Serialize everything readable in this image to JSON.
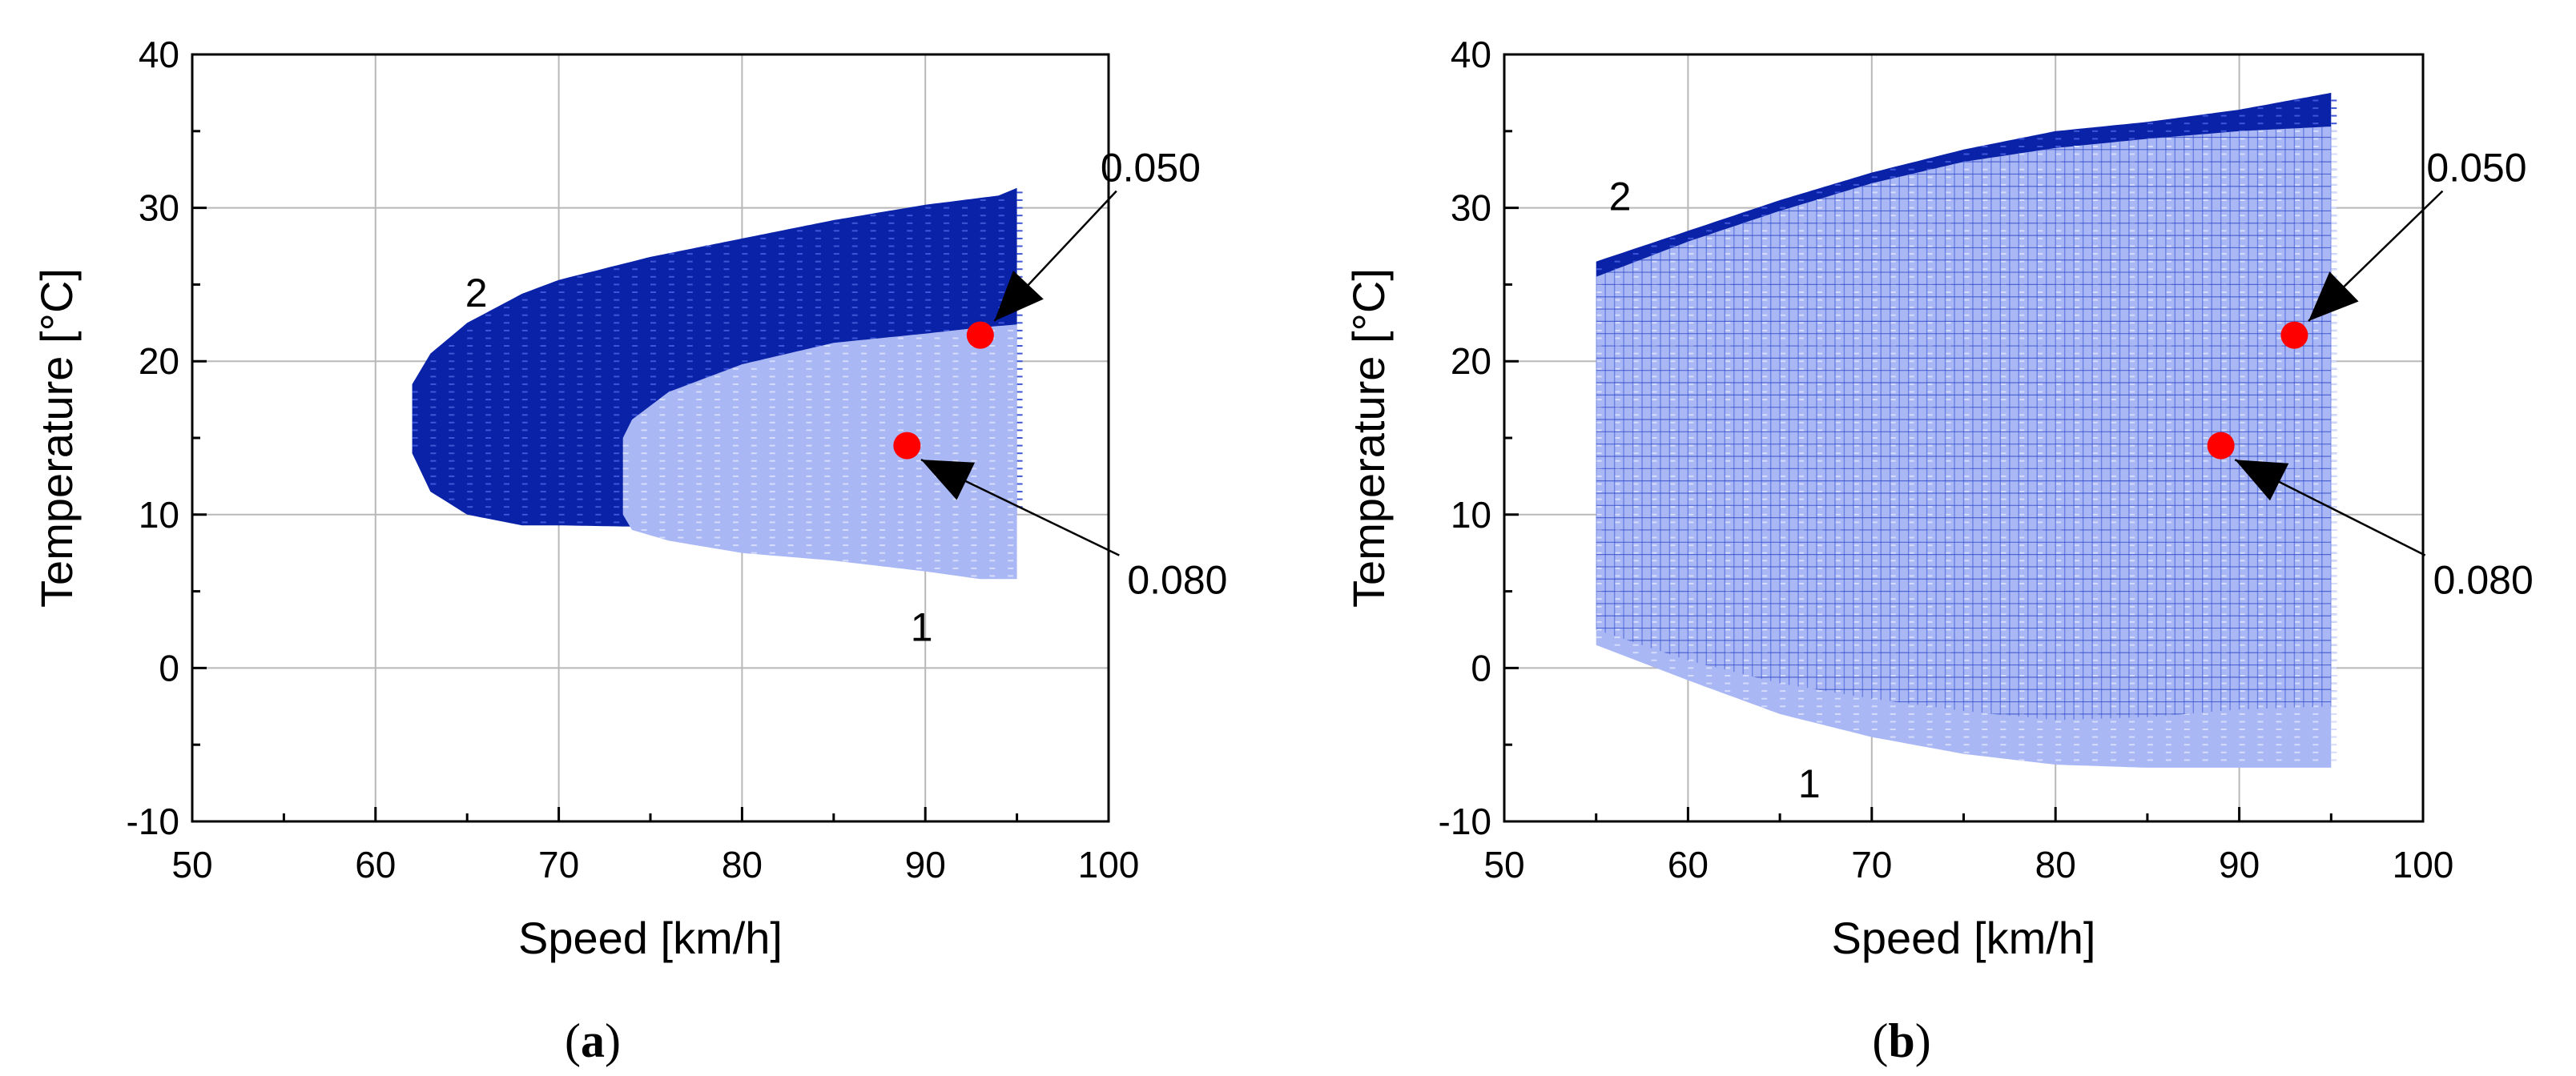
{
  "chart_data": [
    {
      "type": "scatter",
      "panel": "a",
      "caption_open": "(",
      "caption_letter": "a",
      "caption_close": ")",
      "xlabel": "Speed [km/h]",
      "ylabel": "Temperature [°C]",
      "xlim": [
        50,
        100
      ],
      "ylim": [
        -10,
        40
      ],
      "xticks": [
        50,
        60,
        70,
        80,
        90,
        100
      ],
      "yticks": [
        -10,
        0,
        10,
        20,
        30,
        40
      ],
      "grid": true,
      "regions": [
        {
          "label": "2",
          "color": "#0a22a8",
          "x_range": [
            62,
            95
          ],
          "profile": [
            [
              62,
              14.0,
              18.5
            ],
            [
              63,
              11.5,
              20.5
            ],
            [
              65,
              10.0,
              22.5
            ],
            [
              68,
              9.3,
              24.4
            ],
            [
              70,
              9.3,
              25.3
            ],
            [
              75,
              9.2,
              26.8
            ],
            [
              80,
              9.3,
              28.0
            ],
            [
              85,
              9.6,
              29.2
            ],
            [
              90,
              9.8,
              30.2
            ],
            [
              94,
              10.0,
              30.8
            ],
            [
              95,
              10.0,
              31.3
            ]
          ],
          "label_pos": [
            65.5,
            24.5
          ]
        },
        {
          "label": "1",
          "color": "#a9b7f5",
          "x_range": [
            73.5,
            95
          ],
          "profile": [
            [
              73.5,
              10.0,
              15.0
            ],
            [
              74,
              9.0,
              16.2
            ],
            [
              76,
              8.3,
              18.0
            ],
            [
              80,
              7.5,
              19.8
            ],
            [
              85,
              7.0,
              21.2
            ],
            [
              90,
              6.3,
              21.8
            ],
            [
              93,
              5.8,
              22.2
            ],
            [
              95,
              5.8,
              22.4
            ]
          ],
          "label_pos": [
            89.8,
            2.7
          ]
        }
      ],
      "points": [
        {
          "label": "0.050",
          "x": 93,
          "y": 21.7,
          "color": "#ff0000"
        },
        {
          "label": "0.080",
          "x": 89,
          "y": 14.5,
          "color": "#ff0000"
        }
      ]
    },
    {
      "type": "scatter",
      "panel": "b",
      "caption_open": "(",
      "caption_letter": "b",
      "caption_close": ")",
      "xlabel": "Speed [km/h]",
      "ylabel": "Temperature [°C]",
      "xlim": [
        50,
        100
      ],
      "ylim": [
        -10,
        40
      ],
      "xticks": [
        50,
        60,
        70,
        80,
        90,
        100
      ],
      "yticks": [
        -10,
        0,
        10,
        20,
        30,
        40
      ],
      "grid": true,
      "regions": [
        {
          "label": "2",
          "color": "#0a22a8",
          "x_range": [
            55,
            95
          ],
          "profile": [
            [
              55,
              2.5,
              26.5
            ],
            [
              60,
              0.5,
              28.5
            ],
            [
              65,
              -1.0,
              30.5
            ],
            [
              70,
              -2.0,
              32.3
            ],
            [
              75,
              -2.8,
              33.8
            ],
            [
              80,
              -3.4,
              35.0
            ],
            [
              85,
              -3.2,
              35.6
            ],
            [
              90,
              -2.7,
              36.4
            ],
            [
              95,
              -2.5,
              37.5
            ]
          ],
          "label_pos": [
            56.3,
            30.8
          ]
        },
        {
          "label": "1",
          "color": "#a9b7f5",
          "x_range": [
            55,
            95
          ],
          "profile": [
            [
              55,
              1.5,
              25.5
            ],
            [
              60,
              -0.8,
              27.8
            ],
            [
              65,
              -3.0,
              29.8
            ],
            [
              70,
              -4.5,
              31.6
            ],
            [
              75,
              -5.6,
              33.0
            ],
            [
              80,
              -6.3,
              33.9
            ],
            [
              85,
              -6.5,
              34.5
            ],
            [
              90,
              -6.5,
              35.0
            ],
            [
              95,
              -6.5,
              35.3
            ]
          ],
          "label_pos": [
            66.6,
            -7.5
          ]
        }
      ],
      "points": [
        {
          "label": "0.050",
          "x": 93,
          "y": 21.7,
          "color": "#ff0000"
        },
        {
          "label": "0.080",
          "x": 89,
          "y": 14.5,
          "color": "#ff0000"
        }
      ]
    }
  ]
}
